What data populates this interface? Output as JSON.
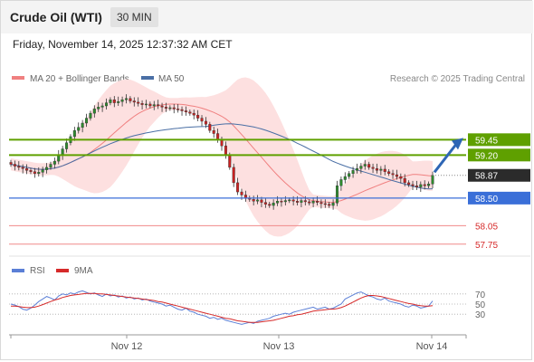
{
  "header": {
    "title": "Crude Oil (WTI)",
    "interval": "30 MIN",
    "datetime": "Friday, November 14, 2025 12:37:32 AM CET"
  },
  "legend": {
    "ma20_label": "MA 20 + Bollinger Bands",
    "ma50_label": "MA 50",
    "credit": "Research © 2025 Trading Central",
    "rsi_label": "RSI",
    "rsi_ma_label": "9MA"
  },
  "colors": {
    "candle_up": "#2e8b2e",
    "candle_down": "#cc2222",
    "ma20": "#f08080",
    "bollinger_fill": "#fde0e0",
    "ma50": "#4a6fa5",
    "resistance": "#5fa000",
    "support": "#3a6fd8",
    "pivot_red": "#f08a8a",
    "price_tag": "#2b2b2b",
    "arrow": "#2e66b5",
    "rsi": "#5b7fd6",
    "rsi_ma": "#d62a2a"
  },
  "chart_data": {
    "type": "candlestick",
    "x_ticks": [
      "Nov 12",
      "Nov 13",
      "Nov 14"
    ],
    "y_range": [
      57.6,
      60.25
    ],
    "levels": [
      {
        "value": 59.45,
        "label": "59.45",
        "kind": "resistance"
      },
      {
        "value": 59.2,
        "label": "59.20",
        "kind": "resistance"
      },
      {
        "value": 58.5,
        "label": "58.50",
        "kind": "pivot"
      },
      {
        "value": 58.05,
        "label": "58.05",
        "kind": "support"
      },
      {
        "value": 57.75,
        "label": "57.75",
        "kind": "support"
      }
    ],
    "last_price": {
      "value": 58.87,
      "label": "58.87"
    },
    "close_series": [
      59.05,
      59.02,
      59.0,
      58.98,
      58.95,
      58.93,
      58.9,
      58.92,
      58.96,
      59.0,
      59.05,
      59.1,
      59.2,
      59.3,
      59.4,
      59.5,
      59.6,
      59.65,
      59.72,
      59.8,
      59.88,
      59.95,
      59.98,
      60.0,
      60.05,
      60.1,
      60.05,
      60.07,
      60.1,
      60.12,
      60.08,
      60.06,
      60.04,
      60.02,
      60.03,
      60.0,
      60.02,
      60.0,
      59.98,
      59.96,
      59.97,
      59.95,
      59.94,
      59.92,
      59.9,
      59.88,
      59.85,
      59.8,
      59.75,
      59.7,
      59.6,
      59.55,
      59.45,
      59.35,
      59.2,
      59.0,
      58.75,
      58.6,
      58.55,
      58.5,
      58.48,
      58.45,
      58.47,
      58.43,
      58.4,
      58.38,
      58.42,
      58.45,
      58.44,
      58.46,
      58.47,
      58.45,
      58.43,
      58.46,
      58.44,
      58.42,
      58.45,
      58.43,
      58.41,
      58.4,
      58.38,
      58.42,
      58.7,
      58.8,
      58.85,
      58.9,
      58.95,
      58.98,
      59.02,
      59.05,
      59.0,
      58.98,
      58.95,
      58.97,
      58.93,
      58.9,
      58.88,
      58.85,
      58.82,
      58.75,
      58.72,
      58.7,
      58.68,
      58.72,
      58.7,
      58.73,
      58.87
    ],
    "rsi": {
      "levels": [
        70,
        50,
        30
      ],
      "values": [
        50,
        48,
        45,
        40,
        38,
        42,
        48,
        55,
        60,
        65,
        62,
        58,
        66,
        70,
        68,
        72,
        70,
        74,
        76,
        73,
        70,
        72,
        68,
        65,
        70,
        66,
        68,
        64,
        66,
        62,
        64,
        60,
        62,
        58,
        60,
        56,
        54,
        52,
        50,
        46,
        48,
        44,
        40,
        38,
        42,
        36,
        34,
        30,
        28,
        26,
        22,
        24,
        20,
        22,
        18,
        16,
        14,
        12,
        10,
        12,
        14,
        12,
        16,
        18,
        20,
        22,
        26,
        28,
        30,
        32,
        30,
        34,
        36,
        38,
        40,
        42,
        44,
        40,
        42,
        44,
        40,
        42,
        46,
        50,
        60,
        64,
        68,
        72,
        74,
        70,
        66,
        64,
        60,
        58,
        62,
        56,
        54,
        52,
        50,
        46,
        44,
        48,
        46,
        42,
        44,
        46,
        56
      ],
      "ma_values": [
        46,
        46,
        45,
        44,
        43,
        43,
        44,
        46,
        49,
        52,
        55,
        58,
        60,
        63,
        65,
        67,
        68,
        69,
        70,
        71,
        71,
        71,
        70,
        70,
        69,
        68,
        67,
        66,
        65,
        64,
        63,
        62,
        61,
        60,
        59,
        58,
        57,
        55,
        54,
        52,
        50,
        48,
        46,
        44,
        42,
        40,
        38,
        36,
        34,
        32,
        30,
        28,
        26,
        24,
        22,
        21,
        19,
        17,
        16,
        15,
        14,
        14,
        14,
        15,
        16,
        17,
        18,
        20,
        22,
        24,
        26,
        27,
        29,
        30,
        32,
        34,
        36,
        37,
        38,
        39,
        40,
        40,
        41,
        43,
        46,
        50,
        54,
        58,
        62,
        65,
        67,
        67,
        66,
        65,
        63,
        61,
        59,
        57,
        55,
        53,
        51,
        50,
        48,
        47,
        46,
        46,
        47
      ]
    }
  }
}
